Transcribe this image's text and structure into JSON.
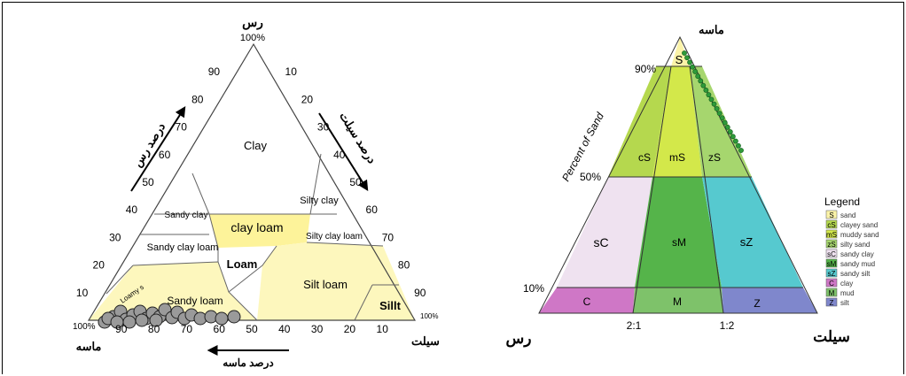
{
  "left": {
    "apex_label": "رس",
    "apex_pct": "100%",
    "bottom_left_label": "ماسه",
    "bottom_left_pct": "100%",
    "bottom_right_label": "سیلت",
    "bottom_right_pct": "100%",
    "left_axis_title": "درصد رس",
    "right_axis_title": "درصد سیلت",
    "bottom_axis_title": "درصد ماسه",
    "left_ticks": [
      "90",
      "80",
      "70",
      "60",
      "50",
      "40",
      "30",
      "20",
      "10"
    ],
    "right_ticks": [
      "10",
      "20",
      "30",
      "40",
      "50",
      "60",
      "70",
      "80",
      "90"
    ],
    "bottom_ticks": [
      "90",
      "80",
      "70",
      "60",
      "50",
      "40",
      "30",
      "20",
      "10"
    ],
    "classes": {
      "clay": "Clay",
      "silty_clay": "Silty clay",
      "sandy_clay": "Sandy clay",
      "clay_loam": "clay loam",
      "sandy_clay_loam": "Sandy clay loam",
      "silty_clay_loam": "Silty clay loam",
      "loam": "Loam",
      "sandy_loam": "Sandy loam",
      "silt_loam": "Silt loam",
      "silt": "Sillt",
      "loamy_sand": "Loamy s"
    },
    "highlight_color": "#fdf7bd",
    "clay_loam_color": "#fdf39a",
    "sample_color": "#9a9a9a"
  },
  "right": {
    "apex_label": "ماسه",
    "left_corner_label": "رس",
    "right_corner_label": "سیلت",
    "axis_title": "Percent of Sand",
    "pct_90": "90%",
    "pct_50": "50%",
    "pct_10": "10%",
    "ratio_21": "2:1",
    "ratio_12": "1:2",
    "regions": {
      "S": "S",
      "cS": "cS",
      "mS": "mS",
      "zS": "zS",
      "sC": "sC",
      "sM": "sM",
      "sZ": "sZ",
      "C": "C",
      "M": "M",
      "Z": "Z"
    },
    "legend_title": "Legend",
    "legend": [
      {
        "code": "S",
        "label": "sand",
        "color": "#fbf3a8"
      },
      {
        "code": "cS",
        "label": "clayey sand",
        "color": "#b5d84e"
      },
      {
        "code": "mS",
        "label": "muddy sand",
        "color": "#d3e84a"
      },
      {
        "code": "zS",
        "label": "silty sand",
        "color": "#a6d66e"
      },
      {
        "code": "sC",
        "label": "sandy clay",
        "color": "#efe2f0"
      },
      {
        "code": "sM",
        "label": "sandy mud",
        "color": "#55b44a"
      },
      {
        "code": "sZ",
        "label": "sandy silt",
        "color": "#56c9cf"
      },
      {
        "code": "C",
        "label": "clay",
        "color": "#cf77c6"
      },
      {
        "code": "M",
        "label": "mud",
        "color": "#7ec26a"
      },
      {
        "code": "Z",
        "label": "silt",
        "color": "#7f87cc"
      }
    ],
    "sample_color": "#2e9a3a"
  }
}
